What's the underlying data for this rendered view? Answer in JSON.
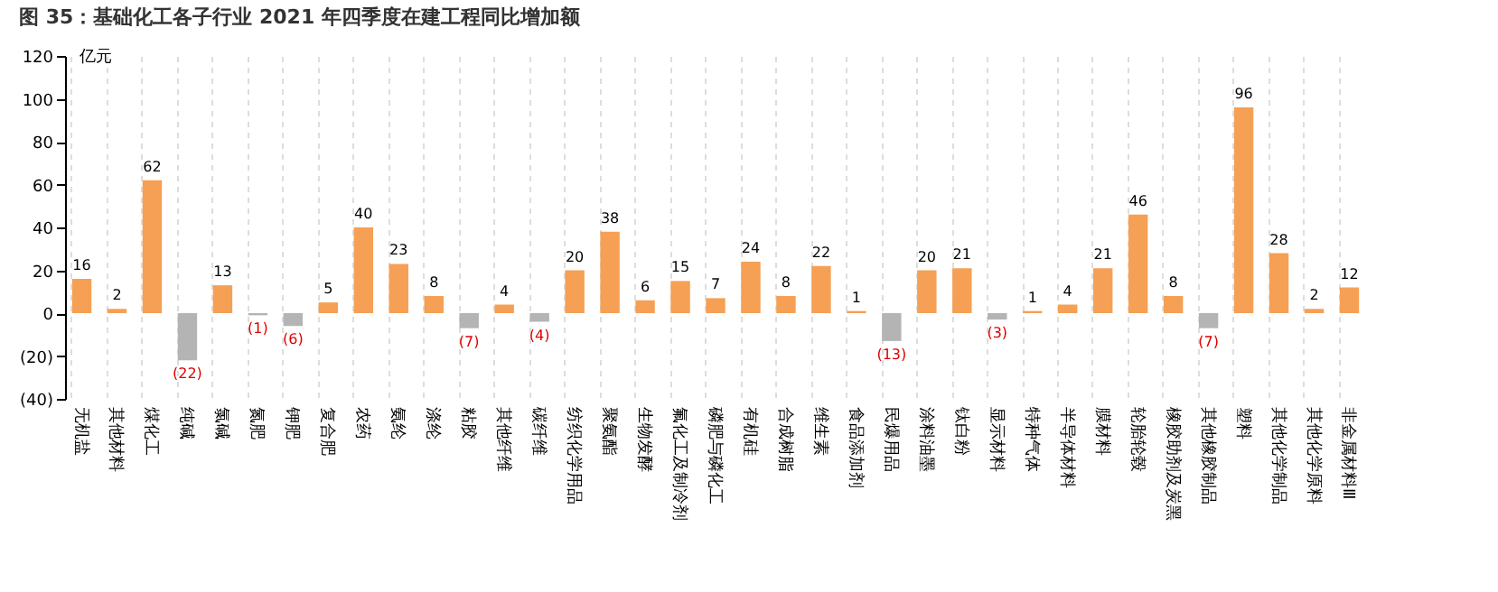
{
  "chart_data": {
    "type": "bar",
    "title": "图 35：基础化工各子行业 2021 年四季度在建工程同比增加额",
    "ylabel": "亿元",
    "categories": [
      "无机盐",
      "其他材料",
      "煤化工",
      "纯碱",
      "氯碱",
      "氮肥",
      "钾肥",
      "复合肥",
      "农药",
      "氨纶",
      "涤纶",
      "粘胶",
      "其他纤维",
      "碳纤维",
      "纺织化学用品",
      "聚氨酯",
      "生物发酵",
      "氟化工及制冷剂",
      "磷肥与磷化工",
      "有机硅",
      "合成树脂",
      "维生素",
      "食品添加剂",
      "民爆用品",
      "涂料油墨",
      "钛白粉",
      "显示材料",
      "特种气体",
      "半导体材料",
      "膜材料",
      "轮胎轮毂",
      "橡胶助剂及炭黑",
      "其他橡胶制品",
      "塑料",
      "其他化学制品",
      "其他化学原料",
      "非金属材料Ⅲ"
    ],
    "values": [
      16,
      2,
      62,
      -22,
      13,
      -1,
      -6,
      5,
      40,
      23,
      8,
      -7,
      4,
      -4,
      20,
      38,
      6,
      15,
      7,
      24,
      8,
      22,
      1,
      -13,
      20,
      21,
      -3,
      1,
      4,
      21,
      46,
      8,
      -7,
      96,
      28,
      2,
      12
    ],
    "colors": [
      "#f5a055",
      "#f5a055",
      "#f5a055",
      "#b4b4b4",
      "#f5a055",
      "#b4b4b4",
      "#b4b4b4",
      "#f5a055",
      "#f5a055",
      "#f5a055",
      "#f5a055",
      "#b4b4b4",
      "#f5a055",
      "#b4b4b4",
      "#f5a055",
      "#f5a055",
      "#f5a055",
      "#f5a055",
      "#f5a055",
      "#f5a055",
      "#f5a055",
      "#f5a055",
      "#f5a055",
      "#b4b4b4",
      "#f5a055",
      "#f5a055",
      "#b4b4b4",
      "#f5a055",
      "#f5a055",
      "#f5a055",
      "#f5a055",
      "#f5a055",
      "#b4b4b4",
      "#f5a055",
      "#f5a055",
      "#f5a055",
      "#f5a055"
    ],
    "value_labels": [
      "16",
      "2",
      "62",
      "(22)",
      "13",
      "(1)",
      "(6)",
      "5",
      "40",
      "23",
      "8",
      "(7)",
      "4",
      "(4)",
      "20",
      "38",
      "6",
      "15",
      "7",
      "24",
      "8",
      "22",
      "1",
      "(13)",
      "20",
      "21",
      "(3)",
      "1",
      "4",
      "21",
      "46",
      "8",
      "(7)",
      "96",
      "28",
      "2",
      "12"
    ],
    "ylim": [
      -40,
      120
    ],
    "yticks": [
      {
        "value": 120,
        "label": "120"
      },
      {
        "value": 100,
        "label": "100"
      },
      {
        "value": 80,
        "label": "80"
      },
      {
        "value": 60,
        "label": "60"
      },
      {
        "value": 40,
        "label": "40"
      },
      {
        "value": 20,
        "label": "20"
      },
      {
        "value": 0,
        "label": "0"
      },
      {
        "value": -20,
        "label": "(20)"
      },
      {
        "value": -40,
        "label": "(40)"
      }
    ],
    "grid": "x"
  }
}
